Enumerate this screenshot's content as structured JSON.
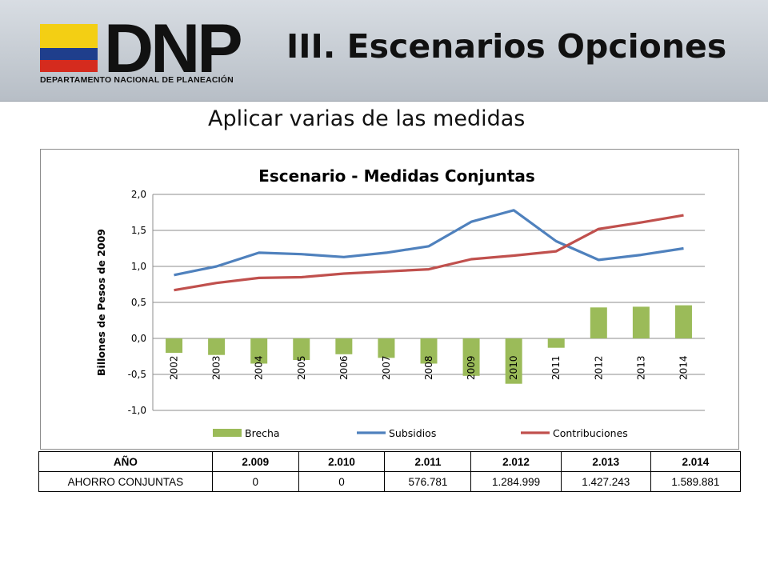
{
  "header": {
    "logo_text": "DNP",
    "logo_subtitle": "DEPARTAMENTO NACIONAL DE PLANEACIÓN",
    "title": "III. Escenarios Opciones",
    "colors": {
      "flag_yellow": "#f3cf14",
      "flag_blue": "#1f3e8c",
      "flag_red": "#d52b1e"
    }
  },
  "subtitle": "Aplicar varias de las medidas",
  "chart_data": {
    "type": "bar",
    "title": "Escenario - Medidas Conjuntas",
    "ylabel": "Billones de Pesos de 2009",
    "xlabel": "",
    "ylim": [
      -1.0,
      2.0
    ],
    "yticks": [
      "-1,0",
      "-0,5",
      "0,0",
      "0,5",
      "1,0",
      "1,5",
      "2,0"
    ],
    "grid": true,
    "legend_position": "bottom",
    "categories": [
      "2002",
      "2003",
      "2004",
      "2005",
      "2006",
      "2007",
      "2008",
      "2009",
      "2010",
      "2011",
      "2012",
      "2013",
      "2014"
    ],
    "series": [
      {
        "name": "Brecha",
        "type": "bar",
        "color": "#9bbb59",
        "values": [
          -0.2,
          -0.23,
          -0.35,
          -0.3,
          -0.22,
          -0.27,
          -0.35,
          -0.52,
          -0.63,
          -0.13,
          0.43,
          0.44,
          0.46
        ]
      },
      {
        "name": "Subsidios",
        "type": "line",
        "color": "#4f81bd",
        "values": [
          0.88,
          1.0,
          1.19,
          1.17,
          1.13,
          1.19,
          1.28,
          1.62,
          1.78,
          1.35,
          1.09,
          1.16,
          1.25
        ]
      },
      {
        "name": "Contribuciones",
        "type": "line",
        "color": "#c0504d",
        "values": [
          0.67,
          0.77,
          0.84,
          0.85,
          0.9,
          0.93,
          0.96,
          1.1,
          1.15,
          1.21,
          1.52,
          1.61,
          1.71
        ]
      }
    ]
  },
  "table": {
    "headers": [
      "AÑO",
      "2.009",
      "2.010",
      "2.011",
      "2.012",
      "2.013",
      "2.014"
    ],
    "rows": [
      [
        "AHORRO CONJUNTAS",
        "0",
        "0",
        "576.781",
        "1.284.999",
        "1.427.243",
        "1.589.881"
      ]
    ]
  }
}
